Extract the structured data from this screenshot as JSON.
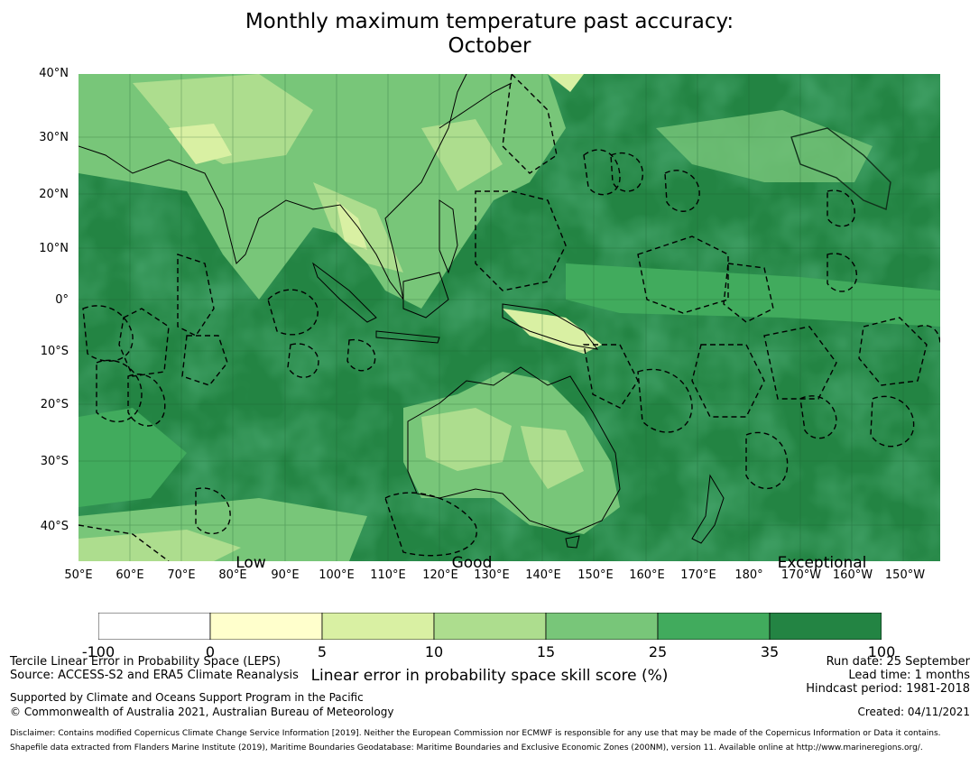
{
  "title_line1": "Monthly maximum temperature past accuracy:",
  "title_line2": "October",
  "lat_labels": [
    "40°N",
    "30°N",
    "20°N",
    "10°N",
    "0°",
    "10°S",
    "20°S",
    "30°S",
    "40°S"
  ],
  "lon_labels": [
    "50°E",
    "60°E",
    "70°E",
    "80°E",
    "90°E",
    "100°E",
    "110°E",
    "120°E",
    "130°E",
    "140°E",
    "150°E",
    "160°E",
    "170°E",
    "180°",
    "170°W",
    "160°W",
    "150°W"
  ],
  "category_labels": [
    "Low",
    "Good",
    "Exceptional"
  ],
  "colorbar": {
    "ticks": [
      "-100",
      "0",
      "5",
      "10",
      "15",
      "25",
      "35",
      "100"
    ],
    "colors": [
      "#ffffff",
      "#ffffcc",
      "#d9f0a3",
      "#addd8e",
      "#78c679",
      "#41ab5d",
      "#238443"
    ],
    "label": "Linear error in probability space skill score (%)"
  },
  "footer": {
    "method": "Tercile Linear Error in Probability Space (LEPS)",
    "source": "Source: ACCESS-S2 and ERA5 Climate Reanalysis",
    "support": "Supported by Climate and Oceans Support Program in the Pacific",
    "copyright": "© Commonwealth of Australia 2021, Australian Bureau of Meteorology",
    "run_date": "Run date: 25 September",
    "lead_time": "Lead time: 1 months",
    "hindcast": "Hindcast period: 1981-2018",
    "created": "Created: 04/11/2021",
    "disclaimer": "Disclaimer: Contains modified Copernicus Climate Change Service Information [2019]. Neither the European Commission nor ECMWF is responsible for any use that may be made of the Copernicus Information or Data it contains.",
    "shapefile": "Shapefile data extracted from Flanders Marine Institute (2019), Maritime Boundaries Geodatabase: Maritime Boundaries and Exclusive Economic Zones (200NM), version 11. Available online at http://www.marineregions.org/."
  }
}
